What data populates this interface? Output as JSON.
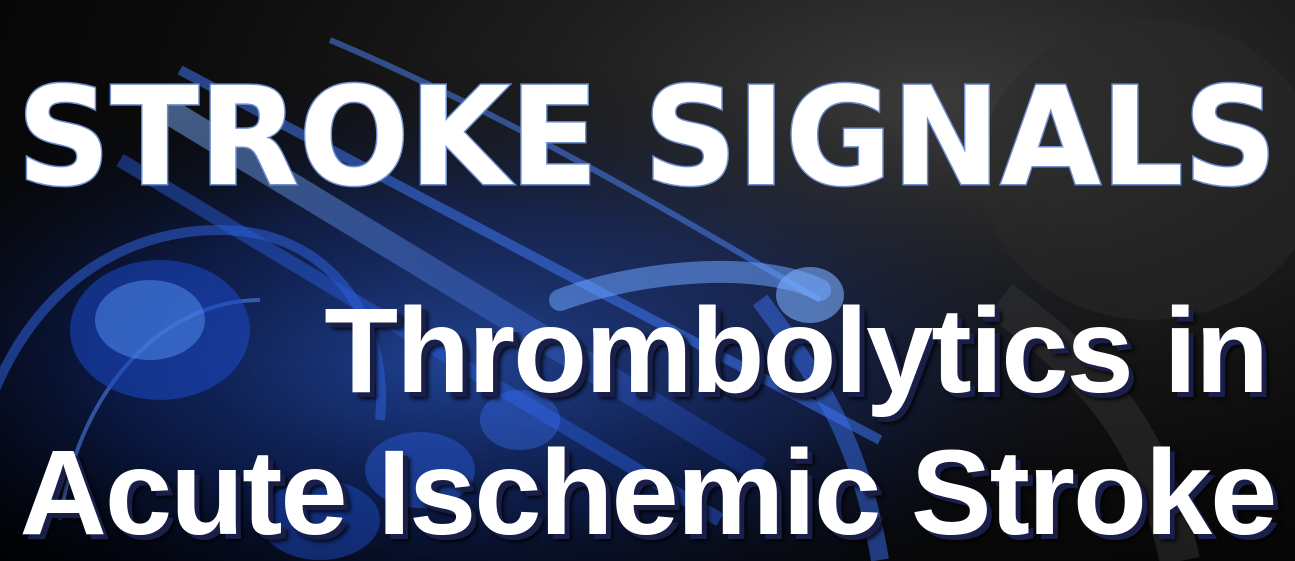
{
  "masthead": {
    "title": "STROKE SIGNALS",
    "text_color": "#ffffff",
    "outline_color": "#6f8fd0"
  },
  "headline": {
    "line1": "Thrombolytics in",
    "line2": "Acute Ischemic Stroke",
    "text_color": "#ffffff",
    "shadow_color": "#1a1f4a"
  },
  "background": {
    "subject": "blue x-ray skeleton",
    "accent": "#3c7cff",
    "base": "#000000"
  }
}
